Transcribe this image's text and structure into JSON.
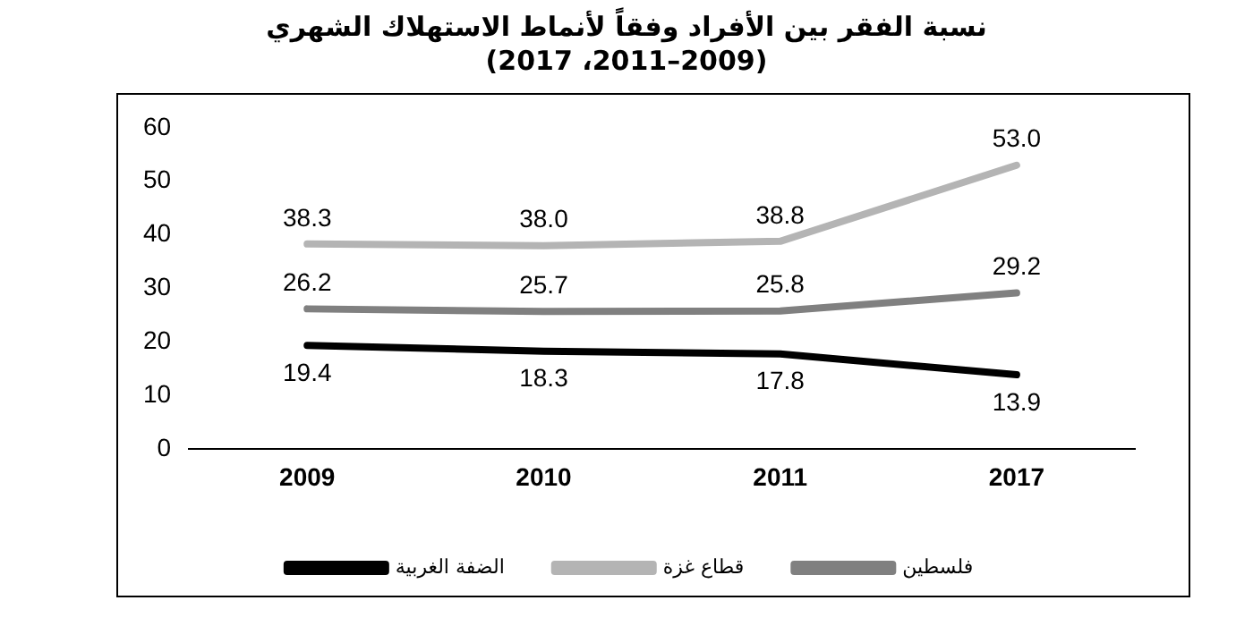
{
  "chart_data": {
    "type": "line",
    "title": "نسبة الفقر بين الأفراد وفقاً لأنماط الاستهلاك الشهري",
    "subtitle": "(2009–2011، 2017)",
    "categories": [
      "2009",
      "2010",
      "2011",
      "2017"
    ],
    "series": [
      {
        "name": "فلسطين",
        "color": "#808080",
        "values": [
          26.2,
          25.7,
          25.8,
          29.2
        ],
        "value_labels": [
          "26.2",
          "25.7",
          "25.8",
          "29.2"
        ]
      },
      {
        "name": "قطاع غزة",
        "color": "#b4b4b4",
        "values": [
          38.3,
          38.0,
          38.8,
          53.0
        ],
        "value_labels": [
          "38.3",
          "38.0",
          "38.8",
          "53.0"
        ]
      },
      {
        "name": "الضفة الغربية",
        "color": "#000000",
        "values": [
          19.4,
          18.3,
          17.8,
          13.9
        ],
        "value_labels": [
          "19.4",
          "18.3",
          "17.8",
          "13.9"
        ]
      }
    ],
    "ylim": [
      0,
      60
    ],
    "yticks": [
      0,
      10,
      20,
      30,
      40,
      50,
      60
    ],
    "grid": false,
    "legend": "bottom",
    "marker": "none",
    "line_style": "solid"
  }
}
